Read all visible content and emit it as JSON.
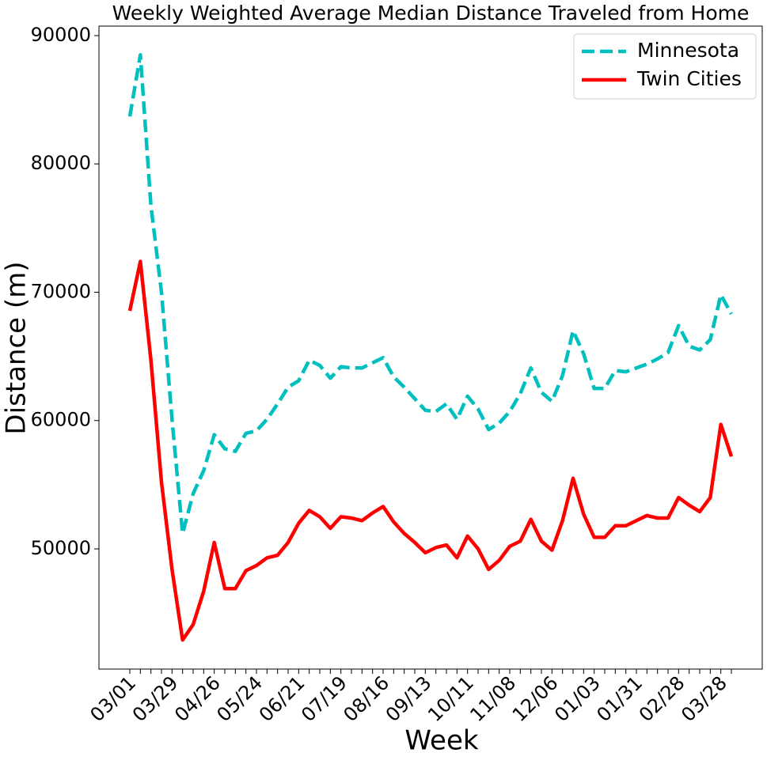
{
  "chart_data": {
    "type": "line",
    "title": "Weekly Weighted Average Median Distance Traveled from Home",
    "x_label": "Week",
    "y_label": "Distance (m)",
    "categories": [
      "03/01",
      null,
      null,
      null,
      "03/29",
      null,
      null,
      null,
      "04/26",
      null,
      null,
      null,
      "05/24",
      null,
      null,
      null,
      "06/21",
      null,
      null,
      null,
      "07/19",
      null,
      null,
      null,
      "08/16",
      null,
      null,
      null,
      "09/13",
      null,
      null,
      null,
      "10/11",
      null,
      null,
      null,
      "11/08",
      null,
      null,
      null,
      "12/06",
      null,
      null,
      null,
      "01/03",
      null,
      null,
      null,
      "01/31",
      null,
      null,
      null,
      "02/28",
      null,
      null,
      null,
      "03/28",
      null
    ],
    "series": [
      {
        "name": "Minnesota",
        "color": "#00bfbf",
        "linestyle": "dashed",
        "values": [
          83700,
          88500,
          76750,
          70000,
          60100,
          51200,
          54300,
          56100,
          58900,
          57800,
          57600,
          59000,
          59200,
          60100,
          61300,
          62600,
          63100,
          64700,
          64300,
          63300,
          64200,
          64100,
          64100,
          64500,
          64900,
          63400,
          62600,
          61700,
          60800,
          60700,
          61300,
          60100,
          61900,
          60900,
          59300,
          59800,
          60700,
          62100,
          64100,
          62200,
          61500,
          63500,
          67000,
          65200,
          62500,
          62500,
          63900,
          63800,
          64100,
          64400,
          64800,
          65300,
          67400,
          65800,
          65500,
          66300,
          69800,
          68300
        ]
      },
      {
        "name": "Twin Cities",
        "color": "#ff0000",
        "linestyle": "solid",
        "values": [
          68550,
          72400,
          64700,
          55200,
          48400,
          42900,
          44100,
          46700,
          50500,
          46900,
          46900,
          48300,
          48700,
          49300,
          49500,
          50500,
          52000,
          53000,
          52500,
          51600,
          52500,
          52400,
          52200,
          52800,
          53300,
          52100,
          51200,
          50500,
          49700,
          50100,
          50300,
          49300,
          51000,
          50000,
          48400,
          49100,
          50200,
          50600,
          52300,
          50600,
          49900,
          52200,
          55500,
          52700,
          50900,
          50900,
          51800,
          51800,
          52200,
          52600,
          52400,
          52400,
          54000,
          53400,
          52900,
          54000,
          59700,
          57200
        ]
      }
    ],
    "ylim": [
      40630,
      90740
    ],
    "yticks": [
      50000,
      60000,
      70000,
      80000,
      90000
    ],
    "grid": false,
    "legend": "upper right"
  }
}
